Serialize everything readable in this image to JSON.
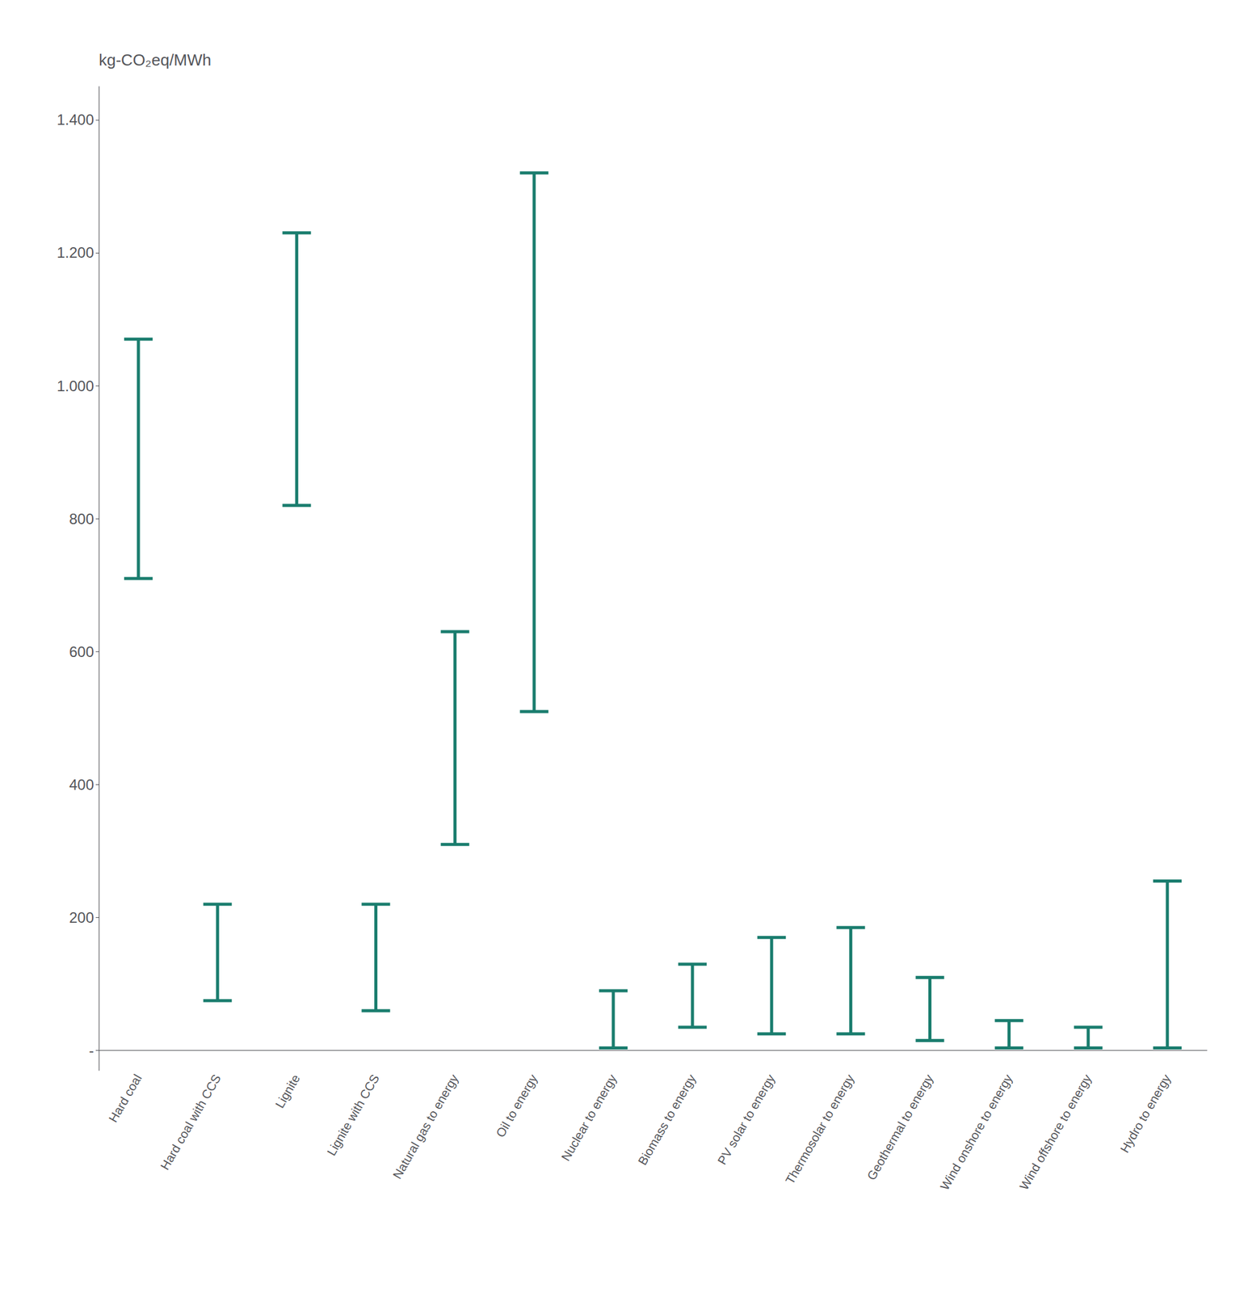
{
  "chart_data": {
    "type": "range",
    "ylabel": "kg-CO₂eq/MWh",
    "categories": [
      "Hard coal",
      "Hard coal with CCS",
      "Lignite",
      "Lignite with CCS",
      "Natural gas to energy",
      "Oil to energy",
      "Nuclear to energy",
      "Biomass to energy",
      "PV solar to energy",
      "Thermosolar to energy",
      "Geothermal to energy",
      "Wind onshore to energy",
      "Wind offshore to energy",
      "Hydro to energy"
    ],
    "low": [
      710,
      75,
      820,
      60,
      310,
      510,
      4,
      35,
      25,
      25,
      15,
      4,
      4,
      4
    ],
    "high": [
      1070,
      220,
      1230,
      220,
      630,
      1320,
      90,
      130,
      170,
      185,
      110,
      45,
      35,
      255
    ],
    "color": "#1a7d6e",
    "ylim": [
      -30,
      1450
    ],
    "yticks": [
      {
        "value": 0,
        "label": "-"
      },
      200,
      400,
      600,
      800,
      {
        "value": 1000,
        "label": "1.000"
      },
      {
        "value": 1200,
        "label": "1.200"
      },
      {
        "value": 1400,
        "label": "1.400"
      }
    ],
    "grid": false
  }
}
